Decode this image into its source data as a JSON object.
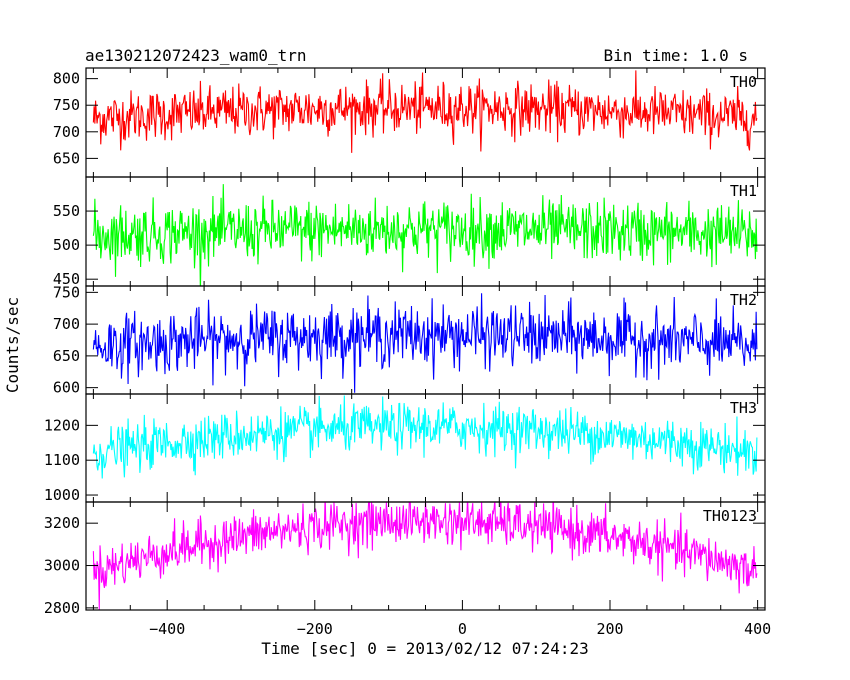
{
  "chart_data": {
    "type": "line",
    "title": "ae130212072423_wam0_trn",
    "subtitle": "Bin time: 1.0 s",
    "xlabel": "Time [sec] 0 = 2013/02/12 07:24:23",
    "ylabel": "Counts/sec",
    "xlim": [
      -510,
      410
    ],
    "xticks": [
      -400,
      -200,
      0,
      200,
      400
    ],
    "grid": false,
    "panels": [
      {
        "name": "TH0",
        "color": "#ff0000",
        "ylim": [
          615,
          820
        ],
        "yticks": [
          650,
          700,
          750,
          800
        ],
        "yticklabels": [
          "650",
          "700",
          "750",
          "800"
        ],
        "base": 725,
        "amp": 20,
        "sigma": 24
      },
      {
        "name": "TH1",
        "color": "#00ff00",
        "ylim": [
          440,
          600
        ],
        "yticks": [
          450,
          500,
          550
        ],
        "yticklabels": [
          "450",
          "500",
          "550"
        ],
        "base": 515,
        "amp": 8,
        "sigma": 22
      },
      {
        "name": "TH2",
        "color": "#0000ff",
        "ylim": [
          590,
          760
        ],
        "yticks": [
          600,
          650,
          700,
          750
        ],
        "yticklabels": [
          "600",
          "650",
          "700",
          "750"
        ],
        "base": 665,
        "amp": 18,
        "sigma": 24
      },
      {
        "name": "TH3",
        "color": "#00ffff",
        "ylim": [
          980,
          1290
        ],
        "yticks": [
          1000,
          1100,
          1200
        ],
        "yticklabels": [
          "1000",
          "1100",
          "1200"
        ],
        "base": 1120,
        "amp": 75,
        "sigma": 34
      },
      {
        "name": "TH0123",
        "color": "#ff00ff",
        "ylim": [
          2790,
          3300
        ],
        "yticks": [
          2800,
          3000,
          3200
        ],
        "yticklabels": [
          "2800",
          "3000",
          "3200"
        ],
        "base": 2970,
        "amp": 240,
        "sigma": 55
      }
    ],
    "series_note_values": {
      "x_start": -500,
      "x_end": 399,
      "x_step": 1
    }
  }
}
